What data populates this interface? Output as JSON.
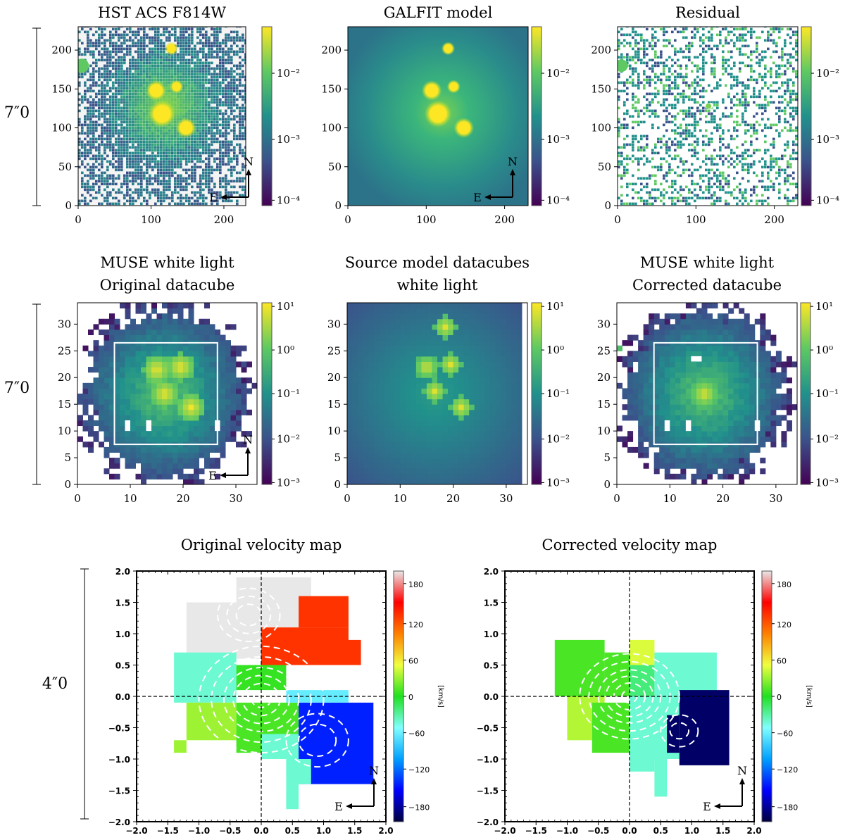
{
  "colors": {
    "viridis": [
      "#440154",
      "#3b528b",
      "#21918c",
      "#5ec962",
      "#fde725"
    ],
    "velocity_cmap": [
      "#000040",
      "#0000ff",
      "#00a0ff",
      "#80ffff",
      "#20e020",
      "#f0ff40",
      "#ff8000",
      "#ff0000",
      "#e8e8e8"
    ],
    "axis": "#000000"
  },
  "scale_labels": [
    "7″​0",
    "7″​0",
    "4″​0"
  ],
  "panels": [
    {
      "title": [
        "HST ACS F814W"
      ],
      "xticks": [
        "0",
        "100",
        "200"
      ],
      "yticks": [
        "0",
        "50",
        "100",
        "150",
        "200"
      ],
      "cbar_ticks": [
        "10⁻²",
        "10⁻³",
        "10⁻⁴"
      ],
      "compass": {
        "n": "N",
        "e": "E"
      }
    },
    {
      "title": [
        "GALFIT model"
      ],
      "xticks": [
        "0",
        "100",
        "200"
      ],
      "yticks": [
        "0",
        "50",
        "100",
        "150",
        "200"
      ],
      "cbar_ticks": [
        "10⁻²",
        "10⁻³",
        "10⁻⁴"
      ],
      "compass": {
        "n": "N",
        "e": "E"
      }
    },
    {
      "title": [
        "Residual"
      ],
      "xticks": [
        "0",
        "100",
        "200"
      ],
      "yticks": [
        "0",
        "50",
        "100",
        "150",
        "200"
      ],
      "cbar_ticks": [
        "10⁻²",
        "10⁻³",
        "10⁻⁴"
      ],
      "compass": null
    },
    {
      "title": [
        "MUSE white light",
        "Original datacube"
      ],
      "xticks": [
        "0",
        "10",
        "20",
        "30"
      ],
      "yticks": [
        "0",
        "5",
        "10",
        "15",
        "20",
        "25",
        "30"
      ],
      "cbar_ticks": [
        "10¹",
        "10⁰",
        "10⁻¹",
        "10⁻²",
        "10⁻³"
      ],
      "compass": {
        "n": "N",
        "e": "E"
      }
    },
    {
      "title": [
        "Source model datacubes",
        "white light"
      ],
      "xticks": [
        "0",
        "10",
        "20",
        "30"
      ],
      "yticks": [
        "0",
        "5",
        "10",
        "15",
        "20",
        "25",
        "30"
      ],
      "cbar_ticks": [
        "10¹",
        "10⁰",
        "10⁻¹",
        "10⁻²",
        "10⁻³"
      ],
      "compass": null
    },
    {
      "title": [
        "MUSE white light",
        "Corrected datacube"
      ],
      "xticks": [
        "0",
        "10",
        "20",
        "30"
      ],
      "yticks": [
        "0",
        "5",
        "10",
        "15",
        "20",
        "25",
        "30"
      ],
      "cbar_ticks": [
        "10¹",
        "10⁰",
        "10⁻¹",
        "10⁻²",
        "10⁻³"
      ],
      "compass": null
    },
    {
      "title": [
        "Original velocity map"
      ],
      "xticks": [
        "−2.0",
        "−1.5",
        "−1.0",
        "−0.5",
        "0.0",
        "0.5",
        "1.0",
        "1.5",
        "2.0"
      ],
      "yticks": [
        "−2.0",
        "−1.5",
        "−1.0",
        "−0.5",
        "0.0",
        "0.5",
        "1.0",
        "1.5",
        "2.0"
      ],
      "cbar_ticks": [
        "180",
        "120",
        "60",
        "0",
        "−60",
        "−120",
        "−180"
      ],
      "cbar_label": "[km/s]",
      "compass": {
        "n": "N",
        "e": "E"
      }
    },
    {
      "title": [
        "Corrected velocity map"
      ],
      "xticks": [
        "−2.0",
        "−1.5",
        "−1.0",
        "−0.5",
        "0.0",
        "0.5",
        "1.0",
        "1.5",
        "2.0"
      ],
      "yticks": [
        "−2.0",
        "−1.5",
        "−1.0",
        "−0.5",
        "0.0",
        "0.5",
        "1.0",
        "1.5",
        "2.0"
      ],
      "cbar_ticks": [
        "180",
        "120",
        "60",
        "0",
        "−60",
        "−120",
        "−180"
      ],
      "cbar_label": "[km/s]",
      "compass": {
        "n": "N",
        "e": "E"
      }
    }
  ],
  "chart_data": [
    {
      "type": "heatmap",
      "title": "HST ACS F814W",
      "xlim": [
        0,
        230
      ],
      "ylim": [
        0,
        230
      ],
      "cbar_range": [
        0.0001,
        0.05
      ],
      "scale": "log",
      "sources": [
        [
          107,
          148
        ],
        [
          115,
          118
        ],
        [
          148,
          100
        ],
        [
          135,
          153
        ],
        [
          128,
          202
        ]
      ]
    },
    {
      "type": "heatmap",
      "title": "GALFIT model",
      "xlim": [
        0,
        230
      ],
      "ylim": [
        0,
        230
      ],
      "cbar_range": [
        0.0001,
        0.05
      ],
      "scale": "log",
      "sources": [
        [
          107,
          148
        ],
        [
          115,
          118
        ],
        [
          148,
          100
        ],
        [
          135,
          153
        ],
        [
          128,
          202
        ]
      ]
    },
    {
      "type": "heatmap",
      "title": "Residual",
      "xlim": [
        0,
        230
      ],
      "ylim": [
        0,
        230
      ],
      "cbar_range": [
        0.0001,
        0.05
      ],
      "scale": "log"
    },
    {
      "type": "heatmap",
      "title": "MUSE white light Original datacube",
      "xlim": [
        0,
        34
      ],
      "ylim": [
        0,
        34
      ],
      "cbar_range": [
        0.001,
        10
      ],
      "scale": "log",
      "box": [
        7,
        7.5,
        26.5,
        26.5
      ]
    },
    {
      "type": "heatmap",
      "title": "Source model datacubes white light",
      "xlim": [
        0,
        34
      ],
      "ylim": [
        0,
        34
      ],
      "cbar_range": [
        0.001,
        10
      ],
      "scale": "log"
    },
    {
      "type": "heatmap",
      "title": "MUSE white light Corrected datacube",
      "xlim": [
        0,
        34
      ],
      "ylim": [
        0,
        34
      ],
      "cbar_range": [
        0.001,
        10
      ],
      "scale": "log",
      "box": [
        7,
        7.5,
        26.5,
        26.5
      ]
    },
    {
      "type": "heatmap",
      "title": "Original velocity map",
      "xlim": [
        -2,
        2
      ],
      "ylim": [
        -2,
        2
      ],
      "cbar_range": [
        -200,
        200
      ],
      "cbar_label": "[km/s]"
    },
    {
      "type": "heatmap",
      "title": "Corrected velocity map",
      "xlim": [
        -2,
        2
      ],
      "ylim": [
        -2,
        2
      ],
      "cbar_range": [
        -200,
        200
      ],
      "cbar_label": "[km/s]"
    }
  ]
}
